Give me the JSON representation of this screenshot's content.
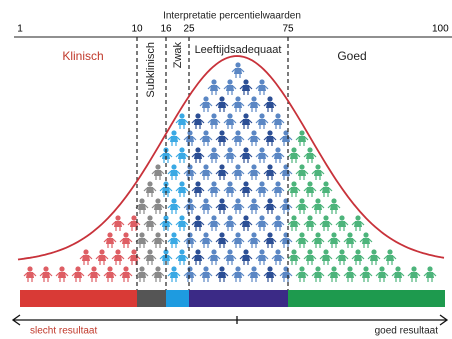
{
  "title": "Interpretatie percentielwaarden",
  "scale_labels": [
    "1",
    "10",
    "16",
    "25",
    "75",
    "100"
  ],
  "zones": [
    "Klinisch",
    "Subklinisch",
    "Zwak",
    "Leeftijdsadequaat",
    "Goed"
  ],
  "arrow": {
    "left": "slecht resultaat",
    "right": "goed resultaat"
  }
}
